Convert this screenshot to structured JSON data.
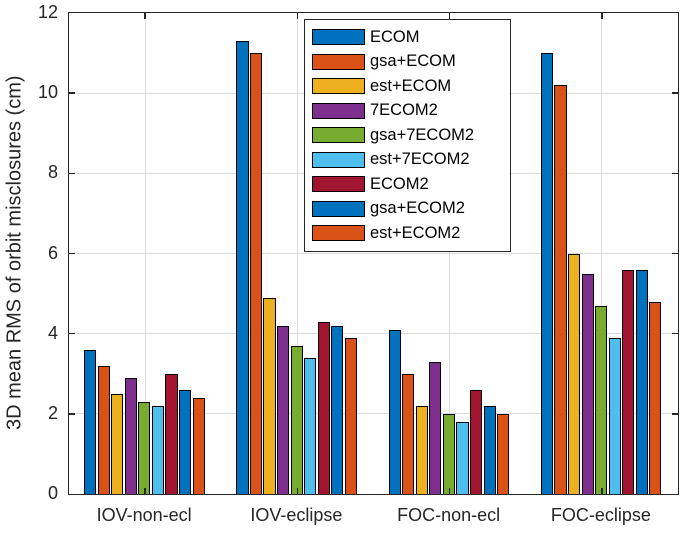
{
  "chart_data": {
    "type": "bar",
    "title": "",
    "ylabel": "3D mean RMS of orbit misclosures (cm)",
    "xlabel": "",
    "ylim": [
      0,
      12
    ],
    "ytick_step": 2,
    "yticks": [
      0,
      2,
      4,
      6,
      8,
      10,
      12
    ],
    "grid": true,
    "legend_position": "top-center-inside",
    "categories": [
      "IOV-non-ecl",
      "IOV-eclipse",
      "FOC-non-ecl",
      "FOC-eclipse"
    ],
    "series": [
      {
        "name": "ECOM",
        "color": "#0072BD",
        "values": [
          3.6,
          11.3,
          4.1,
          11.0
        ]
      },
      {
        "name": "gsa+ECOM",
        "color": "#D95319",
        "values": [
          3.2,
          11.0,
          3.0,
          10.2
        ]
      },
      {
        "name": "est+ECOM",
        "color": "#EDB120",
        "values": [
          2.5,
          4.9,
          2.2,
          6.0
        ]
      },
      {
        "name": "7ECOM2",
        "color": "#7E2F8E",
        "values": [
          2.9,
          4.2,
          3.3,
          5.5
        ]
      },
      {
        "name": "gsa+7ECOM2",
        "color": "#77AC30",
        "values": [
          2.3,
          3.7,
          2.0,
          4.7
        ]
      },
      {
        "name": "est+7ECOM2",
        "color": "#4DBEEE",
        "values": [
          2.2,
          3.4,
          1.8,
          3.9
        ]
      },
      {
        "name": "ECOM2",
        "color": "#A2142F",
        "values": [
          3.0,
          4.3,
          2.6,
          5.6
        ]
      },
      {
        "name": "gsa+ECOM2",
        "color": "#0072BD",
        "values": [
          2.6,
          4.2,
          2.2,
          5.6
        ]
      },
      {
        "name": "est+ECOM2",
        "color": "#D95319",
        "values": [
          2.4,
          3.9,
          2.0,
          4.8
        ]
      }
    ],
    "colors": {
      "axis": "#262626",
      "grid": "#dcdcdc",
      "bar_edge": "#000000",
      "background": "#ffffff"
    }
  }
}
